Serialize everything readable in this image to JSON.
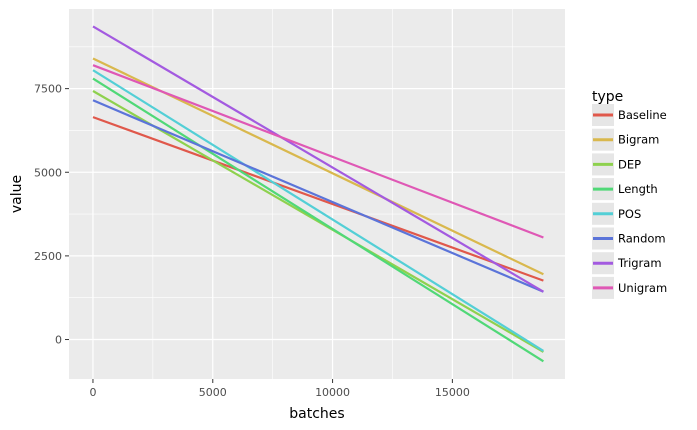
{
  "chart_data": {
    "type": "line",
    "xlabel": "batches",
    "ylabel": "value",
    "xlim": [
      -1000,
      19700
    ],
    "ylim": [
      -1180,
      9880
    ],
    "x_ticks": [
      0,
      5000,
      10000,
      15000
    ],
    "x_tick_labels": [
      "0",
      "5000",
      "10000",
      "15000"
    ],
    "y_ticks": [
      0,
      2500,
      5000,
      7500
    ],
    "y_tick_labels": [
      "0",
      "2500",
      "5000",
      "7500"
    ],
    "grid": true,
    "legend": {
      "title": "type",
      "position": "right"
    },
    "series": [
      {
        "name": "Baseline",
        "color": "#e0584b",
        "x": [
          0,
          18800
        ],
        "y": [
          6650,
          1760
        ]
      },
      {
        "name": "Bigram",
        "color": "#d9b84d",
        "x": [
          0,
          18800
        ],
        "y": [
          8400,
          1950
        ]
      },
      {
        "name": "DEP",
        "color": "#8ed14e",
        "x": [
          0,
          18800
        ],
        "y": [
          7430,
          -370
        ]
      },
      {
        "name": "Length",
        "color": "#50d877",
        "x": [
          0,
          18800
        ],
        "y": [
          7800,
          -650
        ]
      },
      {
        "name": "POS",
        "color": "#53cfd6",
        "x": [
          0,
          18800
        ],
        "y": [
          8050,
          -340
        ]
      },
      {
        "name": "Random",
        "color": "#5b74d9",
        "x": [
          0,
          18800
        ],
        "y": [
          7150,
          1430
        ]
      },
      {
        "name": "Trigram",
        "color": "#a35ae0",
        "x": [
          0,
          18800
        ],
        "y": [
          9360,
          1430
        ]
      },
      {
        "name": "Unigram",
        "color": "#df58b5",
        "x": [
          0,
          18800
        ],
        "y": [
          8200,
          3050
        ]
      }
    ]
  }
}
